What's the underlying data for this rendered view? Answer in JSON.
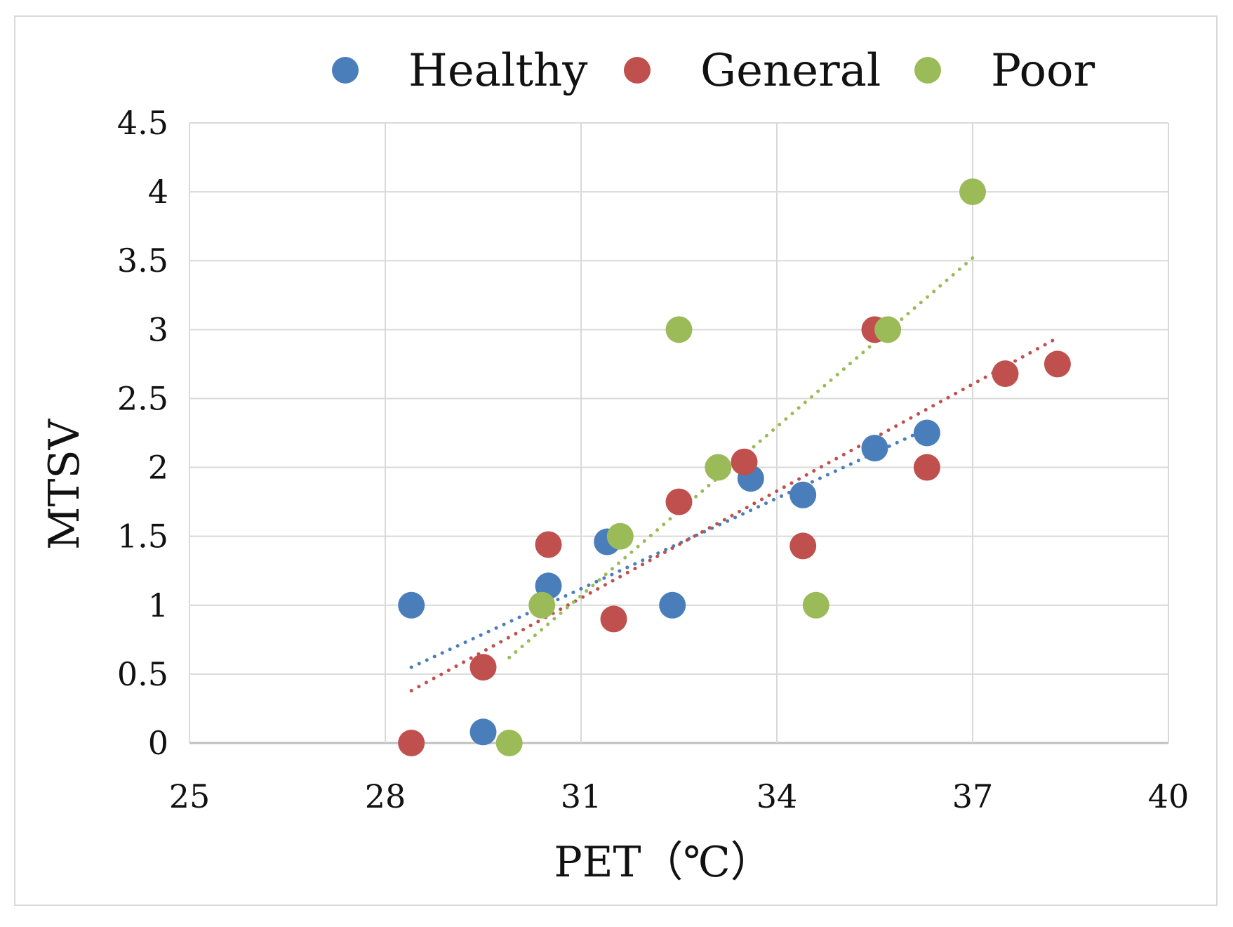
{
  "chart_data": {
    "type": "scatter",
    "title": "",
    "xlabel": "PET（℃）",
    "ylabel": "MTSV",
    "xlim": [
      25,
      40
    ],
    "ylim": [
      0,
      4.5
    ],
    "x_ticks": [
      "25",
      "28",
      "31",
      "34",
      "37",
      "40"
    ],
    "y_ticks": [
      "0",
      "0.5",
      "1",
      "1.5",
      "2",
      "2.5",
      "3",
      "3.5",
      "4",
      "4.5"
    ],
    "x_tick_values": [
      25,
      28,
      31,
      34,
      37,
      40
    ],
    "y_tick_values": [
      0,
      0.5,
      1,
      1.5,
      2,
      2.5,
      3,
      3.5,
      4,
      4.5
    ],
    "grid": true,
    "legend_position": "top",
    "trendline_style": "dotted linear",
    "series": [
      {
        "name": "Healthy",
        "color": "#4a7ebb",
        "points": [
          [
            28.4,
            1.0
          ],
          [
            29.5,
            0.08
          ],
          [
            30.5,
            1.14
          ],
          [
            31.4,
            1.46
          ],
          [
            32.4,
            1.0
          ],
          [
            33.6,
            1.92
          ],
          [
            34.4,
            1.8
          ],
          [
            35.5,
            2.14
          ],
          [
            36.3,
            2.25
          ]
        ],
        "trend": [
          [
            28.4,
            0.55
          ],
          [
            36.3,
            2.28
          ]
        ]
      },
      {
        "name": "General",
        "color": "#c0504d",
        "points": [
          [
            28.4,
            0.0
          ],
          [
            29.5,
            0.55
          ],
          [
            30.5,
            1.44
          ],
          [
            31.5,
            0.9
          ],
          [
            32.5,
            1.75
          ],
          [
            33.5,
            2.04
          ],
          [
            34.4,
            1.43
          ],
          [
            35.5,
            3.0
          ],
          [
            36.3,
            2.0
          ],
          [
            37.5,
            2.68
          ],
          [
            38.3,
            2.75
          ]
        ],
        "trend": [
          [
            28.4,
            0.38
          ],
          [
            38.3,
            2.94
          ]
        ]
      },
      {
        "name": "Poor",
        "color": "#9bbb59",
        "points": [
          [
            29.9,
            0.0
          ],
          [
            30.4,
            1.0
          ],
          [
            31.6,
            1.5
          ],
          [
            32.5,
            3.0
          ],
          [
            33.1,
            2.0
          ],
          [
            34.6,
            1.0
          ],
          [
            35.7,
            3.0
          ],
          [
            37.0,
            4.0
          ]
        ],
        "trend": [
          [
            29.9,
            0.62
          ],
          [
            37.0,
            3.52
          ]
        ]
      }
    ]
  }
}
